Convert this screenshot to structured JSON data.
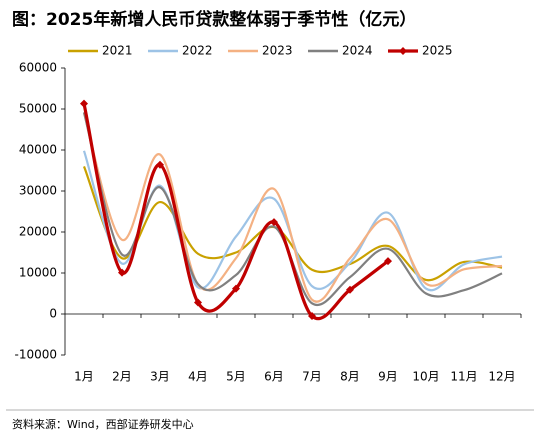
{
  "chart_data": {
    "type": "line",
    "title": "图：2025年新增人民币贷款整体弱于季节性（亿元）",
    "source": "资料来源：Wind，西部证券研发中心",
    "categories": [
      "1月",
      "2月",
      "3月",
      "4月",
      "5月",
      "6月",
      "7月",
      "8月",
      "9月",
      "10月",
      "11月",
      "12月"
    ],
    "series": [
      {
        "name": "2021",
        "color": "#C9A100",
        "values": [
          36000,
          13600,
          27300,
          14700,
          15000,
          21200,
          10800,
          12200,
          16600,
          8300,
          12700,
          11300
        ]
      },
      {
        "name": "2022",
        "color": "#9DC3E6",
        "values": [
          39800,
          12300,
          31300,
          6500,
          18900,
          28100,
          6800,
          12500,
          24700,
          6200,
          12100,
          14000
        ]
      },
      {
        "name": "2023",
        "color": "#F4B183",
        "values": [
          49000,
          18100,
          38900,
          7200,
          13600,
          30500,
          3500,
          13600,
          23100,
          7400,
          10900,
          11700
        ]
      },
      {
        "name": "2024",
        "color": "#808080",
        "values": [
          49200,
          14500,
          30900,
          7300,
          9500,
          21300,
          2600,
          9000,
          15900,
          5000,
          5800,
          9900
        ]
      },
      {
        "name": "2025",
        "color": "#C00000",
        "marker": "diamond",
        "values": [
          51300,
          10100,
          36400,
          2800,
          6200,
          22400,
          -500,
          5900,
          12900,
          null,
          null,
          null
        ]
      }
    ],
    "ylim": [
      -10000,
      60000
    ],
    "yticks": [
      -10000,
      0,
      10000,
      20000,
      30000,
      40000,
      50000,
      60000
    ],
    "grid": false
  }
}
